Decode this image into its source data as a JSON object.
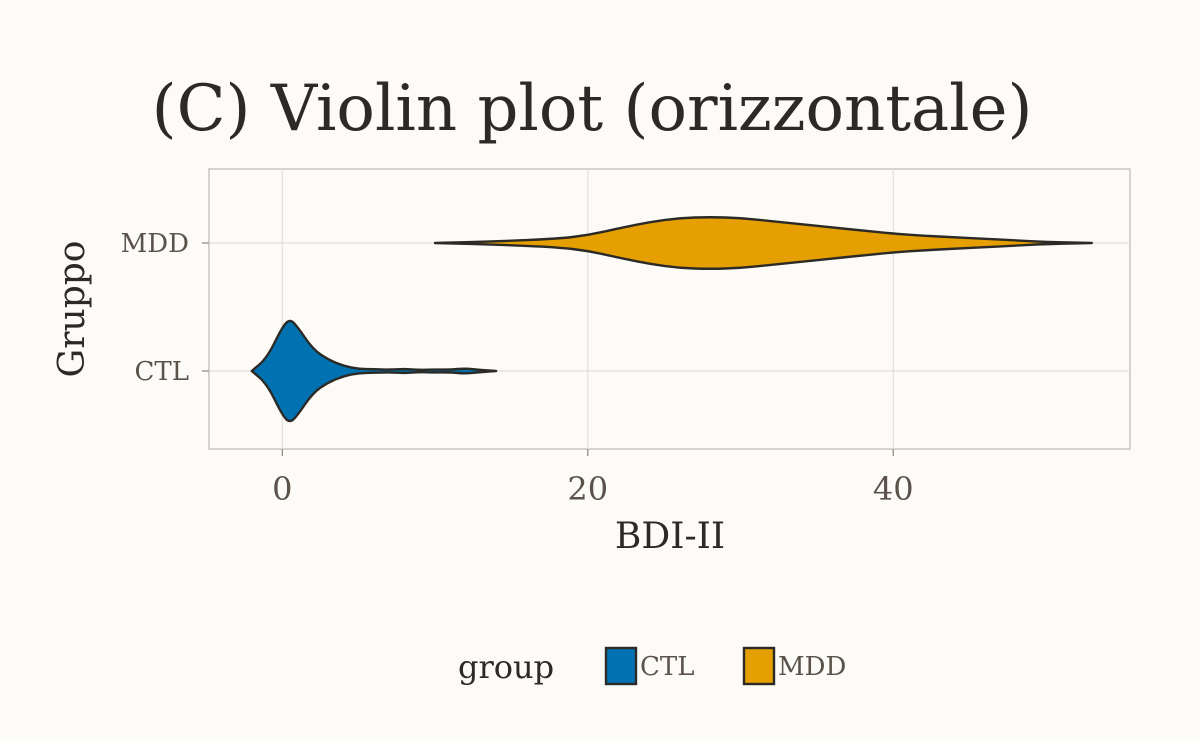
{
  "chart_data": {
    "type": "violin",
    "orientation": "horizontal",
    "title": "(C) Violin plot (orizzontale)",
    "xlabel": "BDI-II",
    "ylabel": "Gruppo",
    "x_ticks": [
      {
        "value": 0,
        "label": "0"
      },
      {
        "value": 20,
        "label": "20"
      },
      {
        "value": 40,
        "label": "40"
      }
    ],
    "xlim": [
      -4.8,
      55.5
    ],
    "categories": [
      "CTL",
      "MDD"
    ],
    "grid": true,
    "series": [
      {
        "name": "CTL",
        "color": "#0072b2",
        "min": -2,
        "max": 14,
        "density_x": [
          -2,
          -1,
          0,
          0.5,
          1,
          2,
          3,
          4,
          5,
          6,
          7,
          8,
          9,
          10,
          11,
          12,
          13,
          14
        ],
        "density_w": [
          0,
          0.25,
          0.85,
          1.0,
          0.85,
          0.42,
          0.22,
          0.1,
          0.04,
          0.035,
          0.025,
          0.04,
          0.02,
          0.03,
          0.025,
          0.05,
          0.02,
          0
        ]
      },
      {
        "name": "MDD",
        "color": "#e69f00",
        "min": 10,
        "max": 53,
        "density_x": [
          10,
          14,
          18,
          20,
          22,
          24,
          26,
          28,
          30,
          32,
          34,
          36,
          38,
          40,
          42,
          44,
          46,
          48,
          50,
          53
        ],
        "density_w": [
          0,
          0.03,
          0.08,
          0.15,
          0.28,
          0.4,
          0.48,
          0.5,
          0.48,
          0.42,
          0.36,
          0.3,
          0.24,
          0.18,
          0.14,
          0.11,
          0.08,
          0.05,
          0.02,
          0
        ]
      }
    ],
    "legend": {
      "title": "group",
      "position": "bottom",
      "entries": [
        {
          "label": "CTL",
          "color": "#0072b2"
        },
        {
          "label": "MDD",
          "color": "#e69f00"
        }
      ]
    }
  }
}
